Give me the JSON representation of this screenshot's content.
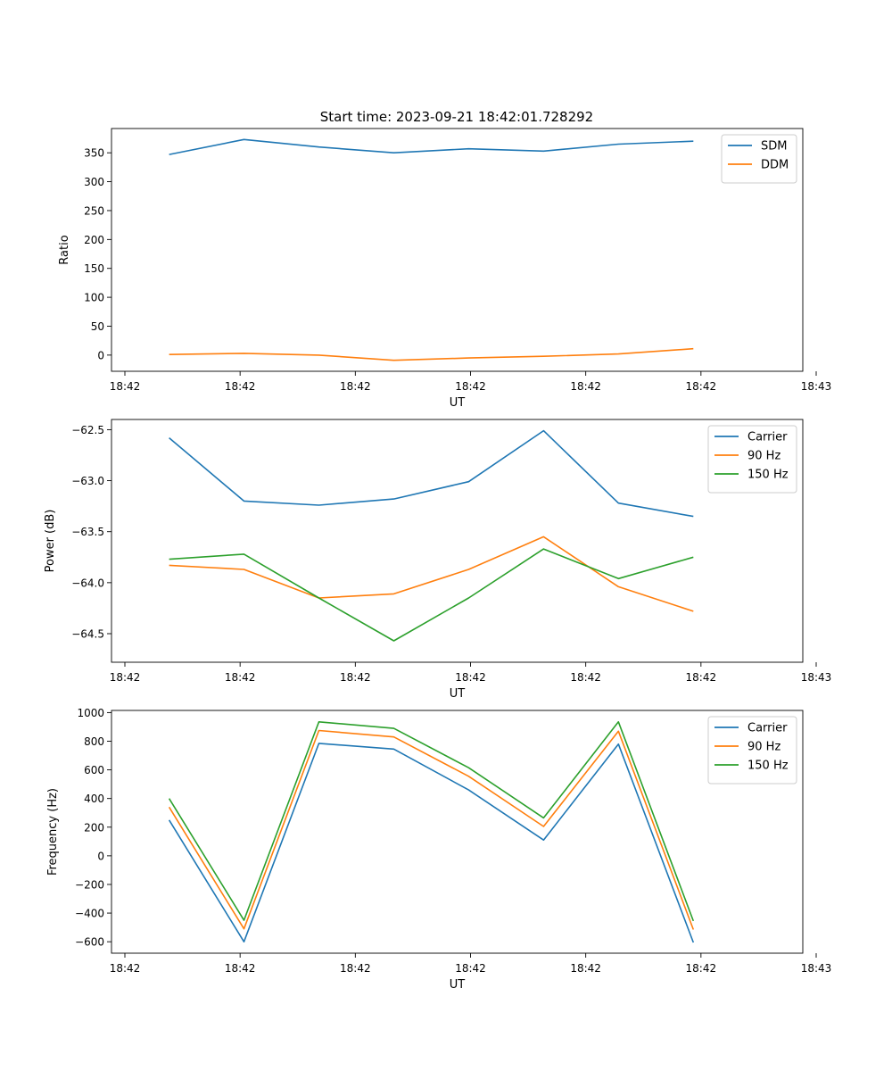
{
  "figure_title": "Start time: 2023-09-21 18:42:01.728292",
  "colors": {
    "c0": "#1f77b4",
    "c1": "#ff7f0e",
    "c2": "#2ca02c"
  },
  "chart_data": [
    {
      "type": "line",
      "title": "Start time: 2023-09-21 18:42:01.728292",
      "xlabel": "UT",
      "ylabel": "Ratio",
      "xtick_labels": [
        "18:42",
        "18:42",
        "18:42",
        "18:42",
        "18:42",
        "18:42",
        "18:43"
      ],
      "x": [
        0.5,
        1.15,
        1.8,
        2.45,
        3.1,
        3.75,
        4.4,
        5.05
      ],
      "xlim": [
        0,
        6
      ],
      "ylim": [
        -28,
        392
      ],
      "yticks": [
        0,
        50,
        100,
        150,
        200,
        250,
        300,
        350
      ],
      "legend_location": "upper right",
      "series": [
        {
          "name": "SDM",
          "color": "#1f77b4",
          "values": [
            347,
            373,
            360,
            350,
            357,
            353,
            365,
            370
          ]
        },
        {
          "name": "DDM",
          "color": "#ff7f0e",
          "values": [
            1,
            3,
            0,
            -9,
            -5,
            -2,
            2,
            11
          ]
        }
      ]
    },
    {
      "type": "line",
      "title": "",
      "xlabel": "UT",
      "ylabel": "Power (dB)",
      "xtick_labels": [
        "18:42",
        "18:42",
        "18:42",
        "18:42",
        "18:42",
        "18:42",
        "18:43"
      ],
      "x": [
        0.5,
        1.15,
        1.8,
        2.45,
        3.1,
        3.75,
        4.4,
        5.05
      ],
      "xlim": [
        0,
        6
      ],
      "ylim": [
        -64.78,
        -62.4
      ],
      "yticks": [
        -62.5,
        -63.0,
        -63.5,
        -64.0,
        -64.5
      ],
      "ytick_labels": [
        "−62.5",
        "−63.0",
        "−63.5",
        "−64.0",
        "−64.5"
      ],
      "legend_location": "upper right",
      "series": [
        {
          "name": "Carrier",
          "color": "#1f77b4",
          "values": [
            -62.58,
            -63.2,
            -63.24,
            -63.18,
            -63.01,
            -62.51,
            -63.22,
            -63.35
          ]
        },
        {
          "name": "90 Hz",
          "color": "#ff7f0e",
          "values": [
            -63.83,
            -63.87,
            -64.15,
            -64.11,
            -63.87,
            -63.55,
            -64.04,
            -64.28
          ]
        },
        {
          "name": "150 Hz",
          "color": "#2ca02c",
          "values": [
            -63.77,
            -63.72,
            -64.15,
            -64.57,
            -64.15,
            -63.67,
            -63.96,
            -63.75
          ]
        }
      ]
    },
    {
      "type": "line",
      "title": "",
      "xlabel": "UT",
      "ylabel": "Frequency (Hz)",
      "xtick_labels": [
        "18:42",
        "18:42",
        "18:42",
        "18:42",
        "18:42",
        "18:42",
        "18:43"
      ],
      "x": [
        0.5,
        1.15,
        1.8,
        2.45,
        3.1,
        3.75,
        4.4,
        5.05
      ],
      "xlim": [
        0,
        6
      ],
      "ylim": [
        -680,
        1015
      ],
      "yticks": [
        -600,
        -400,
        -200,
        0,
        200,
        400,
        600,
        800,
        1000
      ],
      "ytick_labels": [
        "−600",
        "−400",
        "−200",
        "0",
        "200",
        "400",
        "600",
        "800",
        "1000"
      ],
      "legend_location": "upper right",
      "series": [
        {
          "name": "Carrier",
          "color": "#1f77b4",
          "values": [
            250,
            -600,
            785,
            745,
            460,
            110,
            780,
            -605
          ]
        },
        {
          "name": "90 Hz",
          "color": "#ff7f0e",
          "values": [
            340,
            -510,
            875,
            830,
            555,
            205,
            870,
            -515
          ]
        },
        {
          "name": "150 Hz",
          "color": "#2ca02c",
          "values": [
            400,
            -450,
            935,
            890,
            615,
            265,
            935,
            -455
          ]
        }
      ]
    }
  ]
}
